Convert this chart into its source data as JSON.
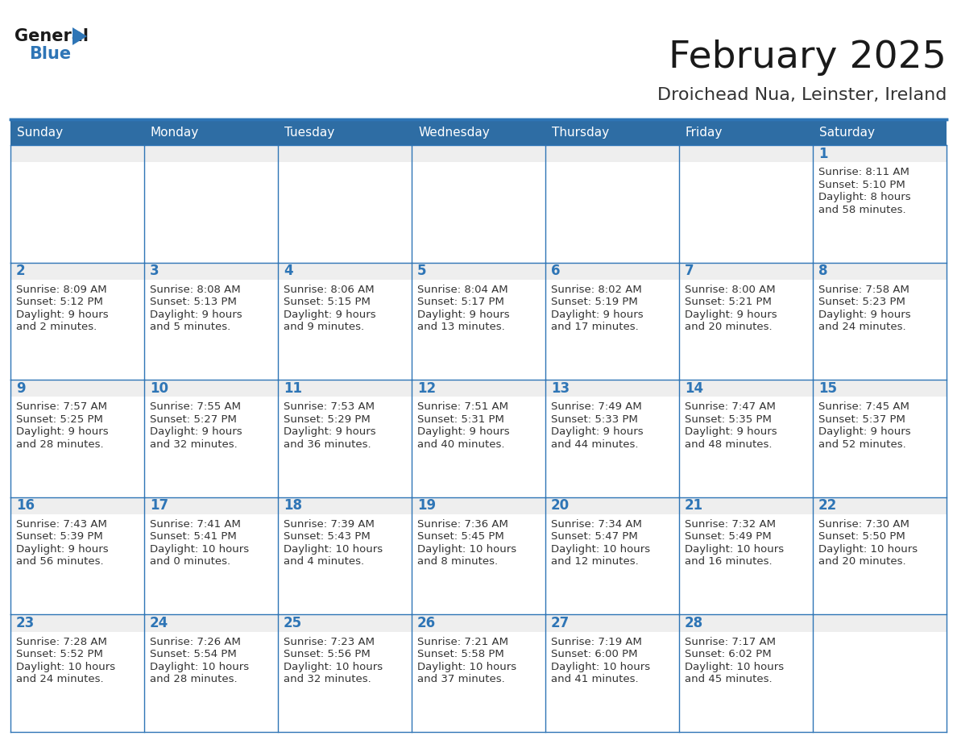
{
  "title": "February 2025",
  "subtitle": "Droichead Nua, Leinster, Ireland",
  "header_bg": "#2E6DA4",
  "header_text": "#FFFFFF",
  "cell_day_bg": "#EEEEEE",
  "cell_body_bg": "#FFFFFF",
  "border_color": "#2E75B6",
  "day_headers": [
    "Sunday",
    "Monday",
    "Tuesday",
    "Wednesday",
    "Thursday",
    "Friday",
    "Saturday"
  ],
  "title_color": "#1a1a1a",
  "subtitle_color": "#333333",
  "day_num_color": "#2E75B6",
  "info_color": "#333333",
  "logo_general_color": "#1a1a1a",
  "logo_blue_color": "#2E75B6",
  "weeks": [
    [
      {
        "day": null,
        "sunrise": null,
        "sunset": null,
        "daylight": null
      },
      {
        "day": null,
        "sunrise": null,
        "sunset": null,
        "daylight": null
      },
      {
        "day": null,
        "sunrise": null,
        "sunset": null,
        "daylight": null
      },
      {
        "day": null,
        "sunrise": null,
        "sunset": null,
        "daylight": null
      },
      {
        "day": null,
        "sunrise": null,
        "sunset": null,
        "daylight": null
      },
      {
        "day": null,
        "sunrise": null,
        "sunset": null,
        "daylight": null
      },
      {
        "day": 1,
        "sunrise": "8:11 AM",
        "sunset": "5:10 PM",
        "daylight": "8 hours and 58 minutes."
      }
    ],
    [
      {
        "day": 2,
        "sunrise": "8:09 AM",
        "sunset": "5:12 PM",
        "daylight": "9 hours and 2 minutes."
      },
      {
        "day": 3,
        "sunrise": "8:08 AM",
        "sunset": "5:13 PM",
        "daylight": "9 hours and 5 minutes."
      },
      {
        "day": 4,
        "sunrise": "8:06 AM",
        "sunset": "5:15 PM",
        "daylight": "9 hours and 9 minutes."
      },
      {
        "day": 5,
        "sunrise": "8:04 AM",
        "sunset": "5:17 PM",
        "daylight": "9 hours and 13 minutes."
      },
      {
        "day": 6,
        "sunrise": "8:02 AM",
        "sunset": "5:19 PM",
        "daylight": "9 hours and 17 minutes."
      },
      {
        "day": 7,
        "sunrise": "8:00 AM",
        "sunset": "5:21 PM",
        "daylight": "9 hours and 20 minutes."
      },
      {
        "day": 8,
        "sunrise": "7:58 AM",
        "sunset": "5:23 PM",
        "daylight": "9 hours and 24 minutes."
      }
    ],
    [
      {
        "day": 9,
        "sunrise": "7:57 AM",
        "sunset": "5:25 PM",
        "daylight": "9 hours and 28 minutes."
      },
      {
        "day": 10,
        "sunrise": "7:55 AM",
        "sunset": "5:27 PM",
        "daylight": "9 hours and 32 minutes."
      },
      {
        "day": 11,
        "sunrise": "7:53 AM",
        "sunset": "5:29 PM",
        "daylight": "9 hours and 36 minutes."
      },
      {
        "day": 12,
        "sunrise": "7:51 AM",
        "sunset": "5:31 PM",
        "daylight": "9 hours and 40 minutes."
      },
      {
        "day": 13,
        "sunrise": "7:49 AM",
        "sunset": "5:33 PM",
        "daylight": "9 hours and 44 minutes."
      },
      {
        "day": 14,
        "sunrise": "7:47 AM",
        "sunset": "5:35 PM",
        "daylight": "9 hours and 48 minutes."
      },
      {
        "day": 15,
        "sunrise": "7:45 AM",
        "sunset": "5:37 PM",
        "daylight": "9 hours and 52 minutes."
      }
    ],
    [
      {
        "day": 16,
        "sunrise": "7:43 AM",
        "sunset": "5:39 PM",
        "daylight": "9 hours and 56 minutes."
      },
      {
        "day": 17,
        "sunrise": "7:41 AM",
        "sunset": "5:41 PM",
        "daylight": "10 hours and 0 minutes."
      },
      {
        "day": 18,
        "sunrise": "7:39 AM",
        "sunset": "5:43 PM",
        "daylight": "10 hours and 4 minutes."
      },
      {
        "day": 19,
        "sunrise": "7:36 AM",
        "sunset": "5:45 PM",
        "daylight": "10 hours and 8 minutes."
      },
      {
        "day": 20,
        "sunrise": "7:34 AM",
        "sunset": "5:47 PM",
        "daylight": "10 hours and 12 minutes."
      },
      {
        "day": 21,
        "sunrise": "7:32 AM",
        "sunset": "5:49 PM",
        "daylight": "10 hours and 16 minutes."
      },
      {
        "day": 22,
        "sunrise": "7:30 AM",
        "sunset": "5:50 PM",
        "daylight": "10 hours and 20 minutes."
      }
    ],
    [
      {
        "day": 23,
        "sunrise": "7:28 AM",
        "sunset": "5:52 PM",
        "daylight": "10 hours and 24 minutes."
      },
      {
        "day": 24,
        "sunrise": "7:26 AM",
        "sunset": "5:54 PM",
        "daylight": "10 hours and 28 minutes."
      },
      {
        "day": 25,
        "sunrise": "7:23 AM",
        "sunset": "5:56 PM",
        "daylight": "10 hours and 32 minutes."
      },
      {
        "day": 26,
        "sunrise": "7:21 AM",
        "sunset": "5:58 PM",
        "daylight": "10 hours and 37 minutes."
      },
      {
        "day": 27,
        "sunrise": "7:19 AM",
        "sunset": "6:00 PM",
        "daylight": "10 hours and 41 minutes."
      },
      {
        "day": 28,
        "sunrise": "7:17 AM",
        "sunset": "6:02 PM",
        "daylight": "10 hours and 45 minutes."
      },
      {
        "day": null,
        "sunrise": null,
        "sunset": null,
        "daylight": null
      }
    ]
  ]
}
